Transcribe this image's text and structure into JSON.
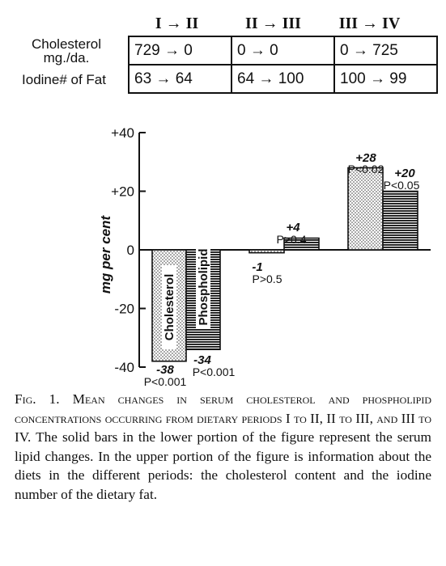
{
  "diet_table": {
    "period_headers": [
      "I → II",
      "II → III",
      "III → IV"
    ],
    "rows": [
      {
        "label_line1": "Cholesterol",
        "label_line2": "mg./da.",
        "cells": [
          "729 → 0",
          "0 → 0",
          "0 → 725"
        ]
      },
      {
        "label_line1": "Iodine# of Fat",
        "label_line2": "",
        "cells": [
          "63 → 64",
          "64 → 100",
          "100 → 99"
        ]
      }
    ]
  },
  "chart_data": {
    "type": "bar",
    "ylabel": "mg per cent",
    "ylim": [
      -40,
      40
    ],
    "yticks": [
      "+40",
      "+20",
      "0",
      "-20",
      "-40"
    ],
    "grid": false,
    "legend": "none",
    "categories": [
      "I → II",
      "II → III",
      "III → IV"
    ],
    "series": [
      {
        "name": "Cholesterol",
        "pattern": "dotted",
        "values": [
          -38,
          -1,
          28
        ],
        "value_labels": [
          "-38",
          "-1",
          "+28"
        ],
        "p_labels": [
          "P<0.001",
          "P>0.5",
          "P<0.02"
        ]
      },
      {
        "name": "Phospholipid",
        "pattern": "horizontal-lines",
        "values": [
          -34,
          4,
          20
        ],
        "value_labels": [
          "-34",
          "+4",
          "+20"
        ],
        "p_labels": [
          "P<0.001",
          "P>0.4",
          "P<0.05"
        ]
      }
    ],
    "bar_text": [
      "Cholesterol",
      "Phospholipid"
    ]
  },
  "caption": {
    "fig_label": "Fig. 1.",
    "title_smallcaps": "Mean changes in serum cholesterol and phospholipid concentrations occurring from dietary periods I to II, II to III, and III to IV.",
    "body": "The solid bars in the lower portion of the figure represent the serum lipid changes. In the upper portion of the figure is information about the diets in the different periods: the cholesterol content and the iodine number of the dietary fat."
  }
}
